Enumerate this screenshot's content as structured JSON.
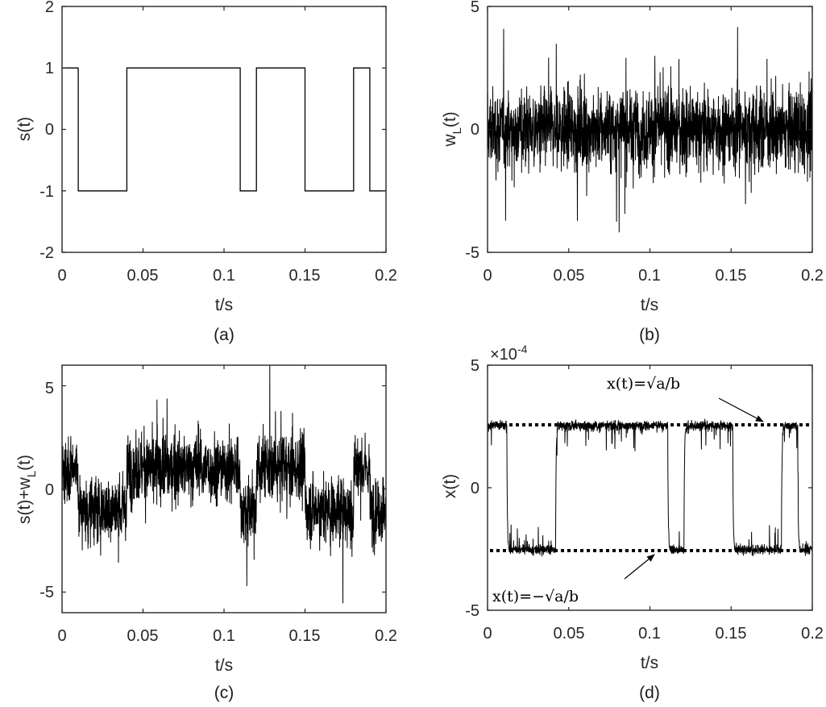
{
  "figure": {
    "panels": [
      {
        "id": "a",
        "caption": "(a)",
        "xlabel": "t/s",
        "ylabel": "s(t)",
        "yticks": [
          "-2",
          "-1",
          "0",
          "1",
          "2"
        ],
        "xticks": [
          "0",
          "0.05",
          "0.1",
          "0.15",
          "0.2"
        ]
      },
      {
        "id": "b",
        "caption": "(b)",
        "xlabel": "t/s",
        "ylabel_main": "w",
        "ylabel_sub": "L",
        "ylabel_tail": "(t)",
        "yticks": [
          "-5",
          "0",
          "5"
        ],
        "xticks": [
          "0",
          "0.05",
          "0.1",
          "0.15",
          "0.2"
        ]
      },
      {
        "id": "c",
        "caption": "(c)",
        "xlabel": "t/s",
        "ylabel_main": "s(t)+w",
        "ylabel_sub": "L",
        "ylabel_tail": "(t)",
        "yticks": [
          "-5",
          "0",
          "5"
        ],
        "xticks": [
          "0",
          "0.05",
          "0.1",
          "0.15",
          "0.2"
        ]
      },
      {
        "id": "d",
        "caption": "(d)",
        "xlabel": "t/s",
        "ylabel": "x(t)",
        "yticks": [
          "-5",
          "0",
          "5"
        ],
        "xticks": [
          "0",
          "0.05",
          "0.1",
          "0.15",
          "0.2"
        ],
        "exponent_base": "×10",
        "exponent_power": "-4",
        "annotation_upper": "x(t)=√a/b",
        "annotation_lower": "x(t)=−√a/b"
      }
    ]
  },
  "chart_data": [
    {
      "panel": "a",
      "type": "line",
      "title": "",
      "xlabel": "t/s",
      "ylabel": "s(t)",
      "xlim": [
        0,
        0.2
      ],
      "ylim": [
        -2,
        2
      ],
      "grid": false,
      "x": [
        0,
        0.01,
        0.01,
        0.04,
        0.04,
        0.11,
        0.11,
        0.12,
        0.12,
        0.15,
        0.15,
        0.18,
        0.18,
        0.19,
        0.19,
        0.2
      ],
      "y": [
        1,
        1,
        -1,
        -1,
        1,
        1,
        -1,
        -1,
        1,
        1,
        -1,
        -1,
        1,
        1,
        -1,
        -1
      ],
      "description": "binary square signal switching between +1 and -1"
    },
    {
      "panel": "b",
      "type": "line",
      "title": "",
      "xlabel": "t/s",
      "ylabel": "w_L(t)",
      "xlim": [
        0,
        0.2
      ],
      "ylim": [
        -5,
        5
      ],
      "grid": false,
      "description": "dense zero-mean noise, bulk roughly within ±2.5, spikes clipped at ±5"
    },
    {
      "panel": "c",
      "type": "line",
      "title": "",
      "xlabel": "t/s",
      "ylabel": "s(t)+w_L(t)",
      "xlim": [
        0,
        0.2
      ],
      "ylim": [
        -6,
        6
      ],
      "grid": false,
      "description": "square signal s(t) buried in noise w_L(t); bulk follows ±1 levels"
    },
    {
      "panel": "d",
      "type": "line",
      "title": "",
      "xlabel": "t/s",
      "ylabel": "x(t)",
      "xlim": [
        0,
        0.2
      ],
      "ylim": [
        -0.0005,
        0.0005
      ],
      "grid": false,
      "y_scale_factor": "1e-4",
      "switch_times": [
        0.012,
        0.042,
        0.111,
        0.121,
        0.151,
        0.181,
        0.191
      ],
      "levels": {
        "upper": 0.00025,
        "lower": -0.00025
      },
      "reference_lines": [
        {
          "label": "x(t)=sqrt(a/b)",
          "y": 0.00025,
          "style": "dotted"
        },
        {
          "label": "x(t)=-sqrt(a/b)",
          "y": -0.00025,
          "style": "dotted"
        }
      ],
      "description": "bistable system output switching between wells at ±sqrt(a/b) ≈ ±2.5e-4"
    }
  ]
}
